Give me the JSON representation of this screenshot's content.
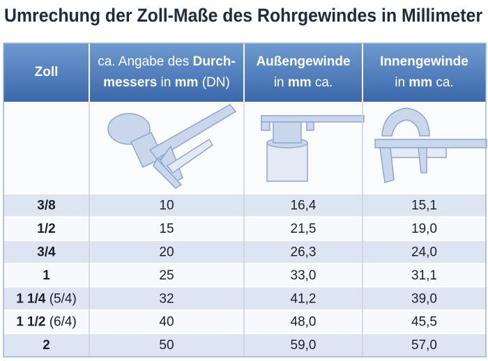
{
  "title": "Umrechung der Zoll-Maße des Rohrgewindes in Millimeter",
  "table": {
    "header": [
      [
        [
          {
            "text": "Zoll",
            "bold": true
          }
        ]
      ],
      [
        [
          {
            "text": "ca. Angabe des ",
            "bold": false
          },
          {
            "text": "Durch-",
            "bold": true
          }
        ],
        [
          {
            "text": "messers",
            "bold": true
          },
          {
            "text": " in ",
            "bold": false
          },
          {
            "text": "mm",
            "bold": true
          },
          {
            "text": " (DN)",
            "bold": false
          }
        ]
      ],
      [
        [
          {
            "text": "Außengewinde",
            "bold": true
          }
        ],
        [
          {
            "text": "in ",
            "bold": false
          },
          {
            "text": "mm",
            "bold": true
          },
          {
            "text": " ca.",
            "bold": false
          }
        ]
      ],
      [
        [
          {
            "text": "Innengewinde",
            "bold": true
          }
        ],
        [
          {
            "text": "in ",
            "bold": false
          },
          {
            "text": "mm",
            "bold": true
          },
          {
            "text": " ca.",
            "bold": false
          }
        ]
      ]
    ],
    "rows": [
      [
        [
          {
            "text": "3/8",
            "bold": true
          }
        ],
        "10",
        "16,4",
        "15,1"
      ],
      [
        [
          {
            "text": "1/2",
            "bold": true
          }
        ],
        "15",
        "21,5",
        "19,0"
      ],
      [
        [
          {
            "text": "3/4",
            "bold": true
          }
        ],
        "20",
        "26,3",
        "24,0"
      ],
      [
        [
          {
            "text": "1",
            "bold": true
          }
        ],
        "25",
        "33,0",
        "31,1"
      ],
      [
        [
          {
            "text": "1 1/4",
            "bold": true
          },
          {
            "text": " (5/4)",
            "bold": false
          }
        ],
        "32",
        "41,2",
        "39,0"
      ],
      [
        [
          {
            "text": "1 1/2",
            "bold": true
          },
          {
            "text": " (6/4)",
            "bold": false
          }
        ],
        "40",
        "48,0",
        "45,5"
      ],
      [
        [
          {
            "text": "2",
            "bold": true
          }
        ],
        "50",
        "59,0",
        "57,0"
      ]
    ]
  }
}
